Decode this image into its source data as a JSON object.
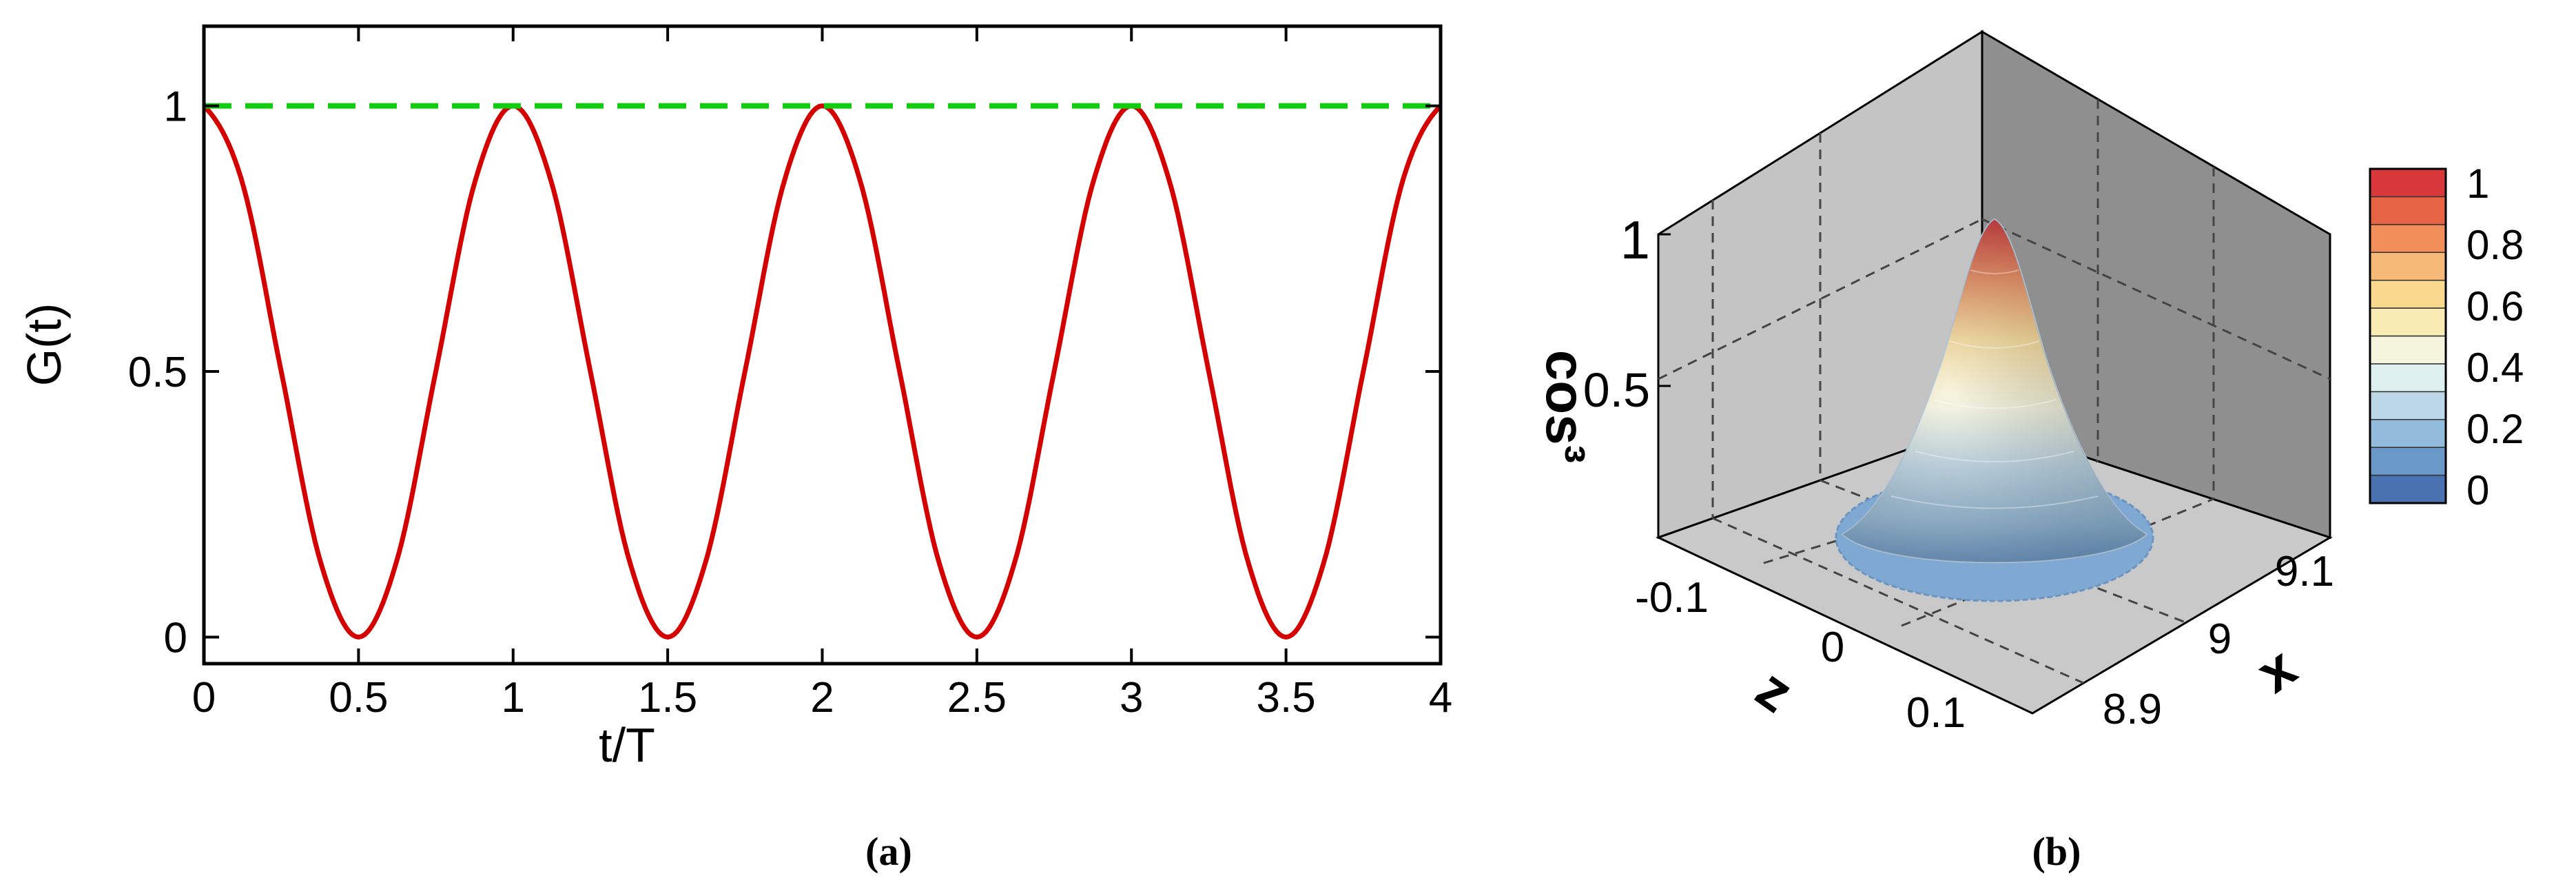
{
  "chart_data": [
    {
      "type": "line",
      "panel_label": "(a)",
      "xlabel": "t/T",
      "ylabel": "G(t)",
      "xlim": [
        0,
        4
      ],
      "ylim": [
        -0.05,
        1.15
      ],
      "x_ticks": [
        "0",
        "0.5",
        "1",
        "1.5",
        "2",
        "2.5",
        "3",
        "3.5",
        "4"
      ],
      "y_ticks": [
        "0",
        "0.5",
        "1"
      ],
      "grid": false,
      "series": [
        {
          "style": "solid",
          "color": "#d40000",
          "x": [
            0,
            0.125,
            0.25,
            0.375,
            0.5,
            0.625,
            0.75,
            0.875,
            1,
            1.125,
            1.25,
            1.375,
            1.5,
            1.625,
            1.75,
            1.875,
            2,
            2.125,
            2.25,
            2.375,
            2.5,
            2.625,
            2.75,
            2.875,
            3,
            3.125,
            3.25,
            3.375,
            3.5,
            3.625,
            3.75,
            3.875,
            4
          ],
          "y": [
            1,
            0.854,
            0.5,
            0.146,
            0,
            0.146,
            0.5,
            0.854,
            1,
            0.854,
            0.5,
            0.146,
            0,
            0.146,
            0.5,
            0.854,
            1,
            0.854,
            0.5,
            0.146,
            0,
            0.146,
            0.5,
            0.854,
            1,
            0.854,
            0.5,
            0.146,
            0,
            0.146,
            0.5,
            0.854,
            1
          ]
        },
        {
          "style": "dashed",
          "color": "#11cc11",
          "x": [
            0,
            4
          ],
          "y": [
            1,
            1
          ]
        }
      ]
    },
    {
      "type": "surface3d",
      "panel_label": "(b)",
      "zlabel": "cos³",
      "xlabel": "x",
      "ylabel": "z",
      "z_ticks": [
        "0.5",
        "1"
      ],
      "x_ticks": [
        "8.9",
        "9",
        "9.1"
      ],
      "y_ticks": [
        "-0.1",
        "0",
        "0.1"
      ],
      "surface": {
        "shape": "gaussian peak",
        "peak_value": 1,
        "center_x": 9,
        "center_z": 0
      },
      "colorbar": {
        "ticks": [
          "0",
          "0.2",
          "0.4",
          "0.6",
          "0.8",
          "1"
        ],
        "colors": [
          "#4a72b0",
          "#6a98c8",
          "#93bcdc",
          "#bcd8e8",
          "#ddefef",
          "#f4f5dc",
          "#f8ecb4",
          "#f9d98e",
          "#f7b978",
          "#f18e5a",
          "#e66444",
          "#d9383a"
        ]
      }
    }
  ]
}
